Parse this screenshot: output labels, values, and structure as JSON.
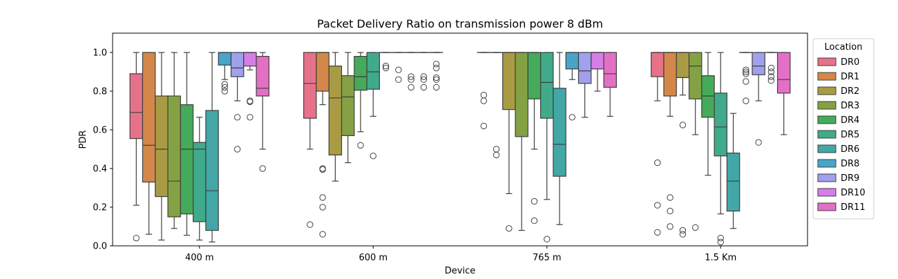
{
  "chart_data": {
    "type": "boxplot",
    "title": "Packet Delivery Ratio on transmission power 8 dBm",
    "xlabel": "Device",
    "ylabel": "PDR",
    "ylim": [
      0,
      1.1
    ],
    "yticks": [
      "0.0",
      "0.2",
      "0.4",
      "0.6",
      "0.8",
      "1.0"
    ],
    "categories": [
      "400 m",
      "600 m",
      "765 m",
      "1.5 Km"
    ],
    "grid": false,
    "legend": {
      "title": "Location",
      "placement": "outside-right",
      "entries": [
        "DR0",
        "DR1",
        "DR2",
        "DR3",
        "DR4",
        "DR5",
        "DR6",
        "DR8",
        "DR9",
        "DR10",
        "DR11"
      ]
    },
    "colors": [
      "#e6728a",
      "#d3884a",
      "#a99b44",
      "#84a244",
      "#45aa5a",
      "#41aa8a",
      "#42a7a6",
      "#48a4c8",
      "#a0a0ec",
      "#d67ee8",
      "#e370c4"
    ],
    "series": [
      {
        "name": "DR0",
        "boxes": [
          {
            "q1": 0.555,
            "median": 0.69,
            "q3": 0.89,
            "whislo": 0.21,
            "whishi": 1.0,
            "fliers": [
              0.04
            ]
          },
          {
            "q1": 0.66,
            "median": 0.84,
            "q3": 1.0,
            "whislo": 0.5,
            "whishi": 1.0,
            "fliers": [
              0.11
            ]
          },
          {
            "q1": 1.0,
            "median": 1.0,
            "q3": 1.0,
            "whislo": 1.0,
            "whishi": 1.0,
            "fliers": [
              0.78,
              0.75,
              0.62
            ]
          },
          {
            "q1": 0.875,
            "median": 1.0,
            "q3": 1.0,
            "whislo": 0.75,
            "whishi": 1.0,
            "fliers": [
              0.43,
              0.21,
              0.07
            ]
          }
        ]
      },
      {
        "name": "DR1",
        "boxes": [
          {
            "q1": 0.33,
            "median": 0.52,
            "q3": 1.0,
            "whislo": 0.06,
            "whishi": 1.0,
            "fliers": []
          },
          {
            "q1": 0.8,
            "median": 1.0,
            "q3": 1.0,
            "whislo": 0.73,
            "whishi": 1.0,
            "fliers": [
              0.4,
              0.395,
              0.25,
              0.2,
              0.06
            ]
          },
          {
            "q1": 1.0,
            "median": 1.0,
            "q3": 1.0,
            "whislo": 1.0,
            "whishi": 1.0,
            "fliers": [
              0.5,
              0.47
            ]
          },
          {
            "q1": 0.775,
            "median": 1.0,
            "q3": 1.0,
            "whislo": 0.67,
            "whishi": 1.0,
            "fliers": [
              0.25,
              0.18,
              0.1
            ]
          }
        ]
      },
      {
        "name": "DR2",
        "boxes": [
          {
            "q1": 0.255,
            "median": 0.5,
            "q3": 0.775,
            "whislo": 0.03,
            "whishi": 1.0,
            "fliers": []
          },
          {
            "q1": 0.47,
            "median": 0.765,
            "q3": 0.93,
            "whislo": 0.335,
            "whishi": 1.0,
            "fliers": []
          },
          {
            "q1": 0.705,
            "median": 1.0,
            "q3": 1.0,
            "whislo": 0.27,
            "whishi": 1.0,
            "fliers": [
              0.09
            ]
          },
          {
            "q1": 0.87,
            "median": 1.0,
            "q3": 1.0,
            "whislo": 0.78,
            "whishi": 1.0,
            "fliers": [
              0.625,
              0.06,
              0.08
            ]
          }
        ]
      },
      {
        "name": "DR3",
        "boxes": [
          {
            "q1": 0.15,
            "median": 0.335,
            "q3": 0.775,
            "whislo": 0.09,
            "whishi": 1.0,
            "fliers": []
          },
          {
            "q1": 0.57,
            "median": 0.77,
            "q3": 0.88,
            "whislo": 0.43,
            "whishi": 1.0,
            "fliers": []
          },
          {
            "q1": 0.565,
            "median": 1.0,
            "q3": 1.0,
            "whislo": 0.08,
            "whishi": 1.0,
            "fliers": []
          },
          {
            "q1": 0.76,
            "median": 0.93,
            "q3": 1.0,
            "whislo": 0.575,
            "whishi": 1.0,
            "fliers": [
              0.095
            ]
          }
        ]
      },
      {
        "name": "DR4",
        "boxes": [
          {
            "q1": 0.165,
            "median": 0.5,
            "q3": 0.73,
            "whislo": 0.055,
            "whishi": 1.0,
            "fliers": []
          },
          {
            "q1": 0.805,
            "median": 0.875,
            "q3": 0.98,
            "whislo": 0.59,
            "whishi": 1.0,
            "fliers": [
              0.52
            ]
          },
          {
            "q1": 0.76,
            "median": 1.0,
            "q3": 1.0,
            "whislo": 0.5,
            "whishi": 1.0,
            "fliers": [
              0.23,
              0.13
            ]
          },
          {
            "q1": 0.665,
            "median": 0.775,
            "q3": 0.88,
            "whislo": 0.365,
            "whishi": 1.0,
            "fliers": []
          }
        ]
      },
      {
        "name": "DR5",
        "boxes": [
          {
            "q1": 0.125,
            "median": 0.5,
            "q3": 0.535,
            "whislo": 0.03,
            "whishi": 0.665,
            "fliers": []
          },
          {
            "q1": 0.81,
            "median": 0.9,
            "q3": 1.0,
            "whislo": 0.67,
            "whishi": 1.0,
            "fliers": [
              0.465
            ]
          },
          {
            "q1": 0.66,
            "median": 0.845,
            "q3": 1.0,
            "whislo": 0.24,
            "whishi": 1.0,
            "fliers": [
              0.035
            ]
          },
          {
            "q1": 0.465,
            "median": 0.615,
            "q3": 0.79,
            "whislo": 0.165,
            "whishi": 1.0,
            "fliers": [
              0.04,
              0.02
            ]
          }
        ]
      },
      {
        "name": "DR6",
        "boxes": [
          {
            "q1": 0.08,
            "median": 0.285,
            "q3": 0.7,
            "whislo": 0.02,
            "whishi": 1.0,
            "fliers": []
          },
          {
            "q1": 1.0,
            "median": 1.0,
            "q3": 1.0,
            "whislo": 1.0,
            "whishi": 1.0,
            "fliers": [
              0.93,
              0.92
            ]
          },
          {
            "q1": 0.36,
            "median": 0.525,
            "q3": 0.815,
            "whislo": 0.11,
            "whishi": 1.0,
            "fliers": []
          },
          {
            "q1": 0.18,
            "median": 0.335,
            "q3": 0.48,
            "whislo": 0.09,
            "whishi": 0.685,
            "fliers": []
          }
        ]
      },
      {
        "name": "DR8",
        "boxes": [
          {
            "q1": 0.935,
            "median": 1.0,
            "q3": 1.0,
            "whislo": 0.86,
            "whishi": 1.0,
            "fliers": [
              0.835,
              0.82,
              0.8
            ]
          },
          {
            "q1": 1.0,
            "median": 1.0,
            "q3": 1.0,
            "whislo": 1.0,
            "whishi": 1.0,
            "fliers": [
              0.91,
              0.86
            ]
          },
          {
            "q1": 0.915,
            "median": 1.0,
            "q3": 1.0,
            "whislo": 0.86,
            "whishi": 1.0,
            "fliers": [
              0.665
            ]
          },
          {
            "q1": 1.0,
            "median": 1.0,
            "q3": 1.0,
            "whislo": 1.0,
            "whishi": 1.0,
            "fliers": [
              0.91,
              0.9,
              0.89,
              0.85,
              0.75
            ]
          }
        ]
      },
      {
        "name": "DR9",
        "boxes": [
          {
            "q1": 0.875,
            "median": 0.92,
            "q3": 1.0,
            "whislo": 0.75,
            "whishi": 1.0,
            "fliers": [
              0.665,
              0.5
            ]
          },
          {
            "q1": 1.0,
            "median": 1.0,
            "q3": 1.0,
            "whislo": 1.0,
            "whishi": 1.0,
            "fliers": [
              0.875,
              0.86,
              0.82
            ]
          },
          {
            "q1": 0.84,
            "median": 0.905,
            "q3": 1.0,
            "whislo": 0.665,
            "whishi": 1.0,
            "fliers": []
          },
          {
            "q1": 0.885,
            "median": 0.93,
            "q3": 1.0,
            "whislo": 0.75,
            "whishi": 1.0,
            "fliers": [
              0.535
            ]
          }
        ]
      },
      {
        "name": "DR10",
        "boxes": [
          {
            "q1": 0.93,
            "median": 1.0,
            "q3": 1.0,
            "whislo": 0.91,
            "whishi": 1.0,
            "fliers": [
              0.75,
              0.745,
              0.665
            ]
          },
          {
            "q1": 1.0,
            "median": 1.0,
            "q3": 1.0,
            "whislo": 1.0,
            "whishi": 1.0,
            "fliers": [
              0.875,
              0.86,
              0.82
            ]
          },
          {
            "q1": 0.915,
            "median": 1.0,
            "q3": 1.0,
            "whislo": 0.8,
            "whishi": 1.0,
            "fliers": []
          },
          {
            "q1": 1.0,
            "median": 1.0,
            "q3": 1.0,
            "whislo": 1.0,
            "whishi": 1.0,
            "fliers": [
              0.92,
              0.9,
              0.875,
              0.855
            ]
          }
        ]
      },
      {
        "name": "DR11",
        "boxes": [
          {
            "q1": 0.775,
            "median": 0.815,
            "q3": 0.98,
            "whislo": 0.5,
            "whishi": 1.0,
            "fliers": [
              0.4
            ]
          },
          {
            "q1": 1.0,
            "median": 1.0,
            "q3": 1.0,
            "whislo": 1.0,
            "whishi": 1.0,
            "fliers": [
              0.94,
              0.92,
              0.87,
              0.86,
              0.82
            ]
          },
          {
            "q1": 0.82,
            "median": 0.89,
            "q3": 1.0,
            "whislo": 0.67,
            "whishi": 1.0,
            "fliers": []
          },
          {
            "q1": 0.79,
            "median": 0.86,
            "q3": 1.0,
            "whislo": 0.575,
            "whishi": 1.0,
            "fliers": []
          }
        ]
      }
    ]
  }
}
